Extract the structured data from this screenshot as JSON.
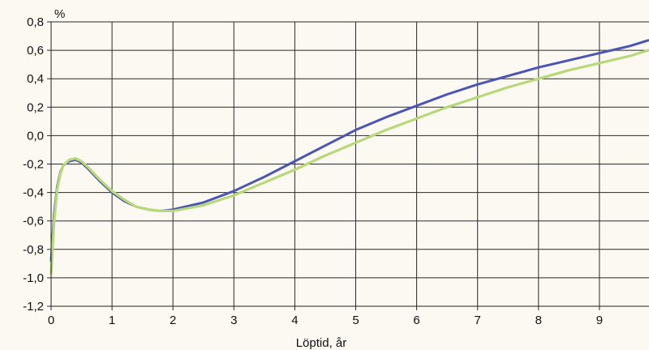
{
  "chart_data": {
    "type": "line",
    "title": "",
    "xlabel": "Löptid, år",
    "ylabel": "%",
    "xlim": [
      0,
      9.8
    ],
    "ylim": [
      -1.2,
      0.8
    ],
    "grid": true,
    "legend": "none",
    "x_ticks": [
      0,
      1,
      2,
      3,
      4,
      5,
      6,
      7,
      8,
      9
    ],
    "x_tick_labels": [
      "0",
      "1",
      "2",
      "3",
      "4",
      "5",
      "6",
      "7",
      "8",
      "9"
    ],
    "y_ticks": [
      0.8,
      0.6,
      0.4,
      0.2,
      0.0,
      -0.2,
      -0.4,
      -0.6,
      -0.8,
      -1.0,
      -1.2
    ],
    "y_tick_labels": [
      "0,8",
      "0,6",
      "0,4",
      "0,2",
      "0,0",
      "-0,2",
      "-0,4",
      "-0,6",
      "-0,8",
      "-1,0",
      "-1,2"
    ],
    "series": [
      {
        "color": "#4a55b4",
        "x": [
          0,
          0.05,
          0.1,
          0.15,
          0.2,
          0.3,
          0.4,
          0.5,
          0.6,
          0.8,
          1.0,
          1.2,
          1.4,
          1.6,
          1.8,
          2.0,
          2.5,
          3.0,
          3.5,
          4.0,
          4.5,
          5.0,
          5.5,
          6.0,
          6.5,
          7.0,
          7.5,
          8.0,
          8.5,
          9.0,
          9.5,
          9.8
        ],
        "y": [
          -0.88,
          -0.55,
          -0.36,
          -0.26,
          -0.21,
          -0.18,
          -0.17,
          -0.19,
          -0.23,
          -0.32,
          -0.4,
          -0.46,
          -0.5,
          -0.52,
          -0.53,
          -0.52,
          -0.47,
          -0.39,
          -0.29,
          -0.18,
          -0.07,
          0.04,
          0.13,
          0.21,
          0.29,
          0.36,
          0.42,
          0.48,
          0.53,
          0.58,
          0.63,
          0.67
        ]
      },
      {
        "color": "#b8d97a",
        "x": [
          0,
          0.05,
          0.1,
          0.15,
          0.2,
          0.3,
          0.4,
          0.5,
          0.6,
          0.8,
          1.0,
          1.2,
          1.4,
          1.6,
          1.8,
          2.0,
          2.5,
          3.0,
          3.5,
          4.0,
          4.5,
          5.0,
          5.5,
          6.0,
          6.5,
          7.0,
          7.5,
          8.0,
          8.5,
          9.0,
          9.5,
          9.8
        ],
        "y": [
          -0.97,
          -0.6,
          -0.38,
          -0.27,
          -0.21,
          -0.17,
          -0.16,
          -0.18,
          -0.22,
          -0.31,
          -0.39,
          -0.45,
          -0.5,
          -0.52,
          -0.53,
          -0.53,
          -0.49,
          -0.42,
          -0.33,
          -0.24,
          -0.14,
          -0.05,
          0.04,
          0.12,
          0.2,
          0.27,
          0.34,
          0.4,
          0.46,
          0.51,
          0.56,
          0.6
        ]
      }
    ]
  }
}
